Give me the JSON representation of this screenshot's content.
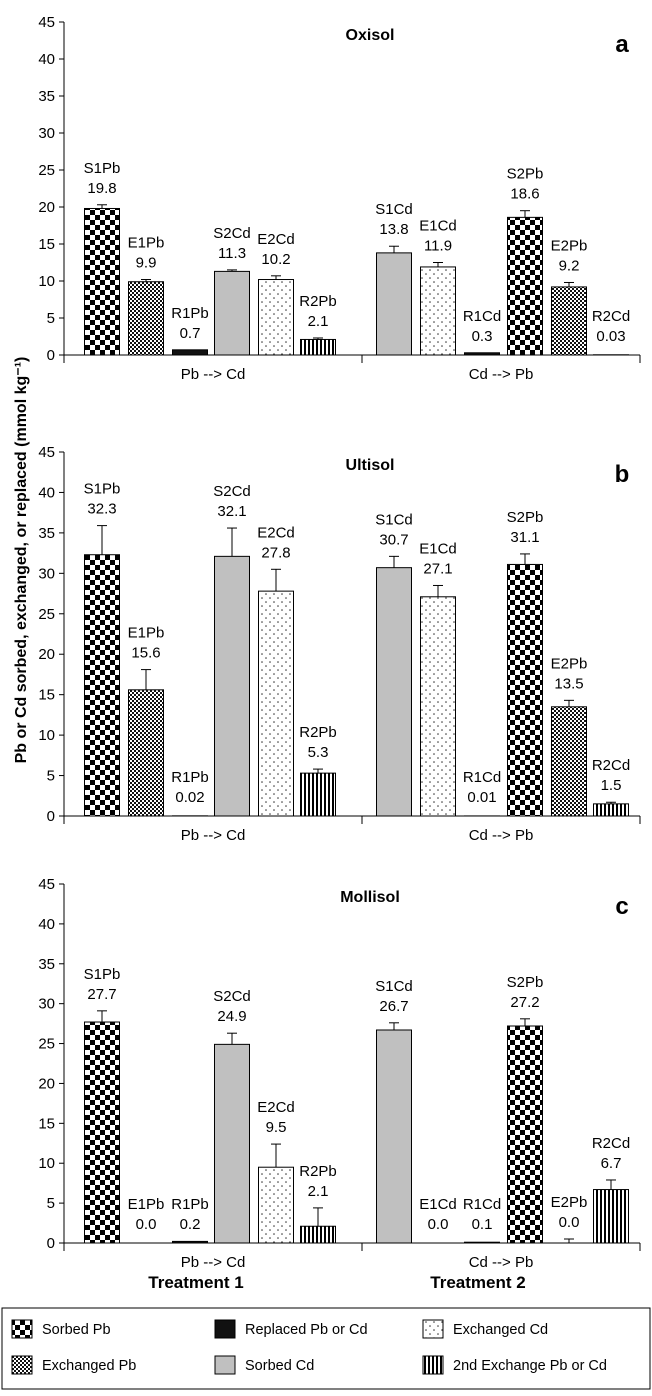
{
  "y_axis_label": "Pb or Cd sorbed, exchanged, or replaced (mmol kg⁻¹)",
  "treatments": [
    "Treatment 1",
    "Treatment 2"
  ],
  "legend": [
    {
      "label": "Sorbed Pb",
      "pattern": "checker"
    },
    {
      "label": "Replaced Pb or Cd",
      "pattern": "black"
    },
    {
      "label": "Exchanged Cd",
      "pattern": "dots"
    },
    {
      "label": "Exchanged Pb",
      "pattern": "fine-checker"
    },
    {
      "label": "Sorbed Cd",
      "pattern": "gray"
    },
    {
      "label": "2nd Exchange Pb or Cd",
      "pattern": "vlines"
    }
  ],
  "colors": {
    "sorbed_cd": "#c0c0c0",
    "replaced": "#111111",
    "axis": "#000000",
    "background": "#ffffff"
  },
  "chart_data": [
    {
      "type": "bar",
      "title": "Oxisol",
      "panel": "a",
      "ylim": [
        0,
        45
      ],
      "yticks": [
        0,
        5,
        10,
        15,
        20,
        25,
        30,
        35,
        40,
        45
      ],
      "groups": [
        "Pb --> Cd",
        "Cd --> Pb"
      ],
      "bars": [
        {
          "group": 0,
          "label": "S1Pb",
          "value_text": "19.8",
          "value": 19.8,
          "error": 0.5,
          "pattern": "checker"
        },
        {
          "group": 0,
          "label": "E1Pb",
          "value_text": "9.9",
          "value": 9.9,
          "error": 0.3,
          "pattern": "fine-checker"
        },
        {
          "group": 0,
          "label": "R1Pb",
          "value_text": "0.7",
          "value": 0.7,
          "error": 0,
          "pattern": "black"
        },
        {
          "group": 0,
          "label": "S2Cd",
          "value_text": "11.3",
          "value": 11.3,
          "error": 0.2,
          "pattern": "gray"
        },
        {
          "group": 0,
          "label": "E2Cd",
          "value_text": "10.2",
          "value": 10.2,
          "error": 0.5,
          "pattern": "dots"
        },
        {
          "group": 0,
          "label": "R2Pb",
          "value_text": "2.1",
          "value": 2.1,
          "error": 0.2,
          "pattern": "vlines"
        },
        {
          "group": 1,
          "label": "S1Cd",
          "value_text": "13.8",
          "value": 13.8,
          "error": 0.9,
          "pattern": "gray"
        },
        {
          "group": 1,
          "label": "E1Cd",
          "value_text": "11.9",
          "value": 11.9,
          "error": 0.6,
          "pattern": "dots"
        },
        {
          "group": 1,
          "label": "R1Cd",
          "value_text": "0.3",
          "value": 0.3,
          "error": 0,
          "pattern": "black"
        },
        {
          "group": 1,
          "label": "S2Pb",
          "value_text": "18.6",
          "value": 18.6,
          "error": 0.9,
          "pattern": "checker"
        },
        {
          "group": 1,
          "label": "E2Pb",
          "value_text": "9.2",
          "value": 9.2,
          "error": 0.6,
          "pattern": "fine-checker"
        },
        {
          "group": 1,
          "label": "R2Cd",
          "value_text": "0.03",
          "value": 0.03,
          "error": 0,
          "pattern": "vlines"
        }
      ]
    },
    {
      "type": "bar",
      "title": "Ultisol",
      "panel": "b",
      "ylim": [
        0,
        45
      ],
      "yticks": [
        0,
        5,
        10,
        15,
        20,
        25,
        30,
        35,
        40,
        45
      ],
      "groups": [
        "Pb --> Cd",
        "Cd --> Pb"
      ],
      "bars": [
        {
          "group": 0,
          "label": "S1Pb",
          "value_text": "32.3",
          "value": 32.3,
          "error": 3.6,
          "pattern": "checker"
        },
        {
          "group": 0,
          "label": "E1Pb",
          "value_text": "15.6",
          "value": 15.6,
          "error": 2.5,
          "pattern": "fine-checker"
        },
        {
          "group": 0,
          "label": "R1Pb",
          "value_text": "0.02",
          "value": 0.02,
          "error": 0,
          "pattern": "black"
        },
        {
          "group": 0,
          "label": "S2Cd",
          "value_text": "32.1",
          "value": 32.1,
          "error": 3.5,
          "pattern": "gray"
        },
        {
          "group": 0,
          "label": "E2Cd",
          "value_text": "27.8",
          "value": 27.8,
          "error": 2.7,
          "pattern": "dots"
        },
        {
          "group": 0,
          "label": "R2Pb",
          "value_text": "5.3",
          "value": 5.3,
          "error": 0.5,
          "pattern": "vlines"
        },
        {
          "group": 1,
          "label": "S1Cd",
          "value_text": "30.7",
          "value": 30.7,
          "error": 1.4,
          "pattern": "gray"
        },
        {
          "group": 1,
          "label": "E1Cd",
          "value_text": "27.1",
          "value": 27.1,
          "error": 1.4,
          "pattern": "dots"
        },
        {
          "group": 1,
          "label": "R1Cd",
          "value_text": "0.01",
          "value": 0.01,
          "error": 0,
          "pattern": "black"
        },
        {
          "group": 1,
          "label": "S2Pb",
          "value_text": "31.1",
          "value": 31.1,
          "error": 1.3,
          "pattern": "checker"
        },
        {
          "group": 1,
          "label": "E2Pb",
          "value_text": "13.5",
          "value": 13.5,
          "error": 0.8,
          "pattern": "fine-checker"
        },
        {
          "group": 1,
          "label": "R2Cd",
          "value_text": "1.5",
          "value": 1.5,
          "error": 0.2,
          "pattern": "vlines"
        }
      ]
    },
    {
      "type": "bar",
      "title": "Mollisol",
      "panel": "c",
      "ylim": [
        0,
        45
      ],
      "yticks": [
        0,
        5,
        10,
        15,
        20,
        25,
        30,
        35,
        40,
        45
      ],
      "groups": [
        "Pb --> Cd",
        "Cd --> Pb"
      ],
      "bars": [
        {
          "group": 0,
          "label": "S1Pb",
          "value_text": "27.7",
          "value": 27.7,
          "error": 1.4,
          "pattern": "checker"
        },
        {
          "group": 0,
          "label": "E1Pb",
          "value_text": "0.0",
          "value": 0.0,
          "error": 0,
          "pattern": "fine-checker"
        },
        {
          "group": 0,
          "label": "R1Pb",
          "value_text": "0.2",
          "value": 0.2,
          "error": 0,
          "pattern": "black"
        },
        {
          "group": 0,
          "label": "S2Cd",
          "value_text": "24.9",
          "value": 24.9,
          "error": 1.4,
          "pattern": "gray"
        },
        {
          "group": 0,
          "label": "E2Cd",
          "value_text": "9.5",
          "value": 9.5,
          "error": 2.9,
          "pattern": "dots"
        },
        {
          "group": 0,
          "label": "R2Pb",
          "value_text": "2.1",
          "value": 2.1,
          "error": 2.3,
          "pattern": "vlines"
        },
        {
          "group": 1,
          "label": "S1Cd",
          "value_text": "26.7",
          "value": 26.7,
          "error": 0.9,
          "pattern": "gray"
        },
        {
          "group": 1,
          "label": "E1Cd",
          "value_text": "0.0",
          "value": 0.0,
          "error": 0,
          "pattern": "dots"
        },
        {
          "group": 1,
          "label": "R1Cd",
          "value_text": "0.1",
          "value": 0.1,
          "error": 0,
          "pattern": "black"
        },
        {
          "group": 1,
          "label": "S2Pb",
          "value_text": "27.2",
          "value": 27.2,
          "error": 0.9,
          "pattern": "checker"
        },
        {
          "group": 1,
          "label": "E2Pb",
          "value_text": "0.0",
          "value": 0.0,
          "error": 0.5,
          "pattern": "fine-checker"
        },
        {
          "group": 1,
          "label": "R2Cd",
          "value_text": "6.7",
          "value": 6.7,
          "error": 1.2,
          "pattern": "vlines"
        }
      ]
    }
  ]
}
